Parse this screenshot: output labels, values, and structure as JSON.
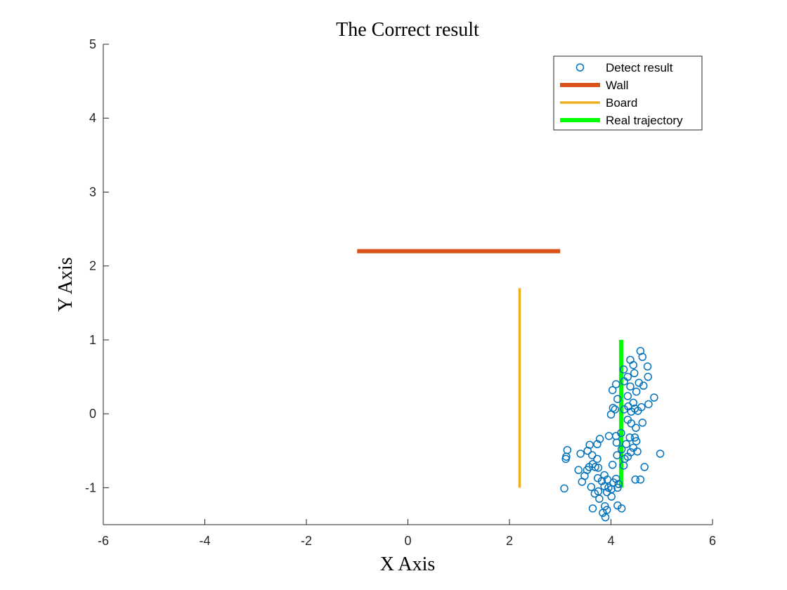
{
  "chart_data": {
    "type": "scatter",
    "title": "The Correct result",
    "xlabel": "X Axis",
    "ylabel": "Y Axis",
    "xlim": [
      -6,
      6
    ],
    "ylim": [
      -1.5,
      5
    ],
    "xticks": [
      "-6",
      "-4",
      "-2",
      "0",
      "2",
      "4",
      "6"
    ],
    "yticks": [
      "-1",
      "0",
      "1",
      "2",
      "3",
      "4",
      "5"
    ],
    "grid": false,
    "legend_position": "top-right",
    "series": [
      {
        "name": "Detect result",
        "kind": "scatter",
        "marker": "circle",
        "color": "#0072BD",
        "points": [
          [
            4.58,
            0.85
          ],
          [
            4.38,
            0.73
          ],
          [
            4.62,
            0.77
          ],
          [
            4.44,
            0.66
          ],
          [
            4.72,
            0.64
          ],
          [
            4.25,
            0.6
          ],
          [
            4.46,
            0.55
          ],
          [
            4.33,
            0.5
          ],
          [
            4.73,
            0.5
          ],
          [
            4.26,
            0.44
          ],
          [
            4.55,
            0.42
          ],
          [
            4.1,
            0.4
          ],
          [
            4.64,
            0.38
          ],
          [
            4.38,
            0.37
          ],
          [
            4.03,
            0.32
          ],
          [
            4.5,
            0.3
          ],
          [
            4.33,
            0.24
          ],
          [
            4.85,
            0.22
          ],
          [
            4.13,
            0.2
          ],
          [
            4.44,
            0.15
          ],
          [
            4.74,
            0.13
          ],
          [
            4.34,
            0.1
          ],
          [
            4.6,
            0.09
          ],
          [
            4.04,
            0.08
          ],
          [
            4.47,
            0.07
          ],
          [
            4.08,
            0.06
          ],
          [
            4.26,
            0.06
          ],
          [
            4.53,
            0.04
          ],
          [
            4.0,
            -0.01
          ],
          [
            4.4,
            0.03
          ],
          [
            4.33,
            -0.08
          ],
          [
            4.4,
            -0.13
          ],
          [
            4.62,
            -0.12
          ],
          [
            4.49,
            -0.19
          ],
          [
            4.2,
            -0.26
          ],
          [
            3.96,
            -0.3
          ],
          [
            4.1,
            -0.3
          ],
          [
            4.37,
            -0.32
          ],
          [
            4.47,
            -0.32
          ],
          [
            3.78,
            -0.34
          ],
          [
            4.5,
            -0.37
          ],
          [
            4.11,
            -0.39
          ],
          [
            4.3,
            -0.41
          ],
          [
            3.73,
            -0.41
          ],
          [
            3.58,
            -0.42
          ],
          [
            4.44,
            -0.46
          ],
          [
            4.21,
            -0.48
          ],
          [
            3.14,
            -0.49
          ],
          [
            3.54,
            -0.5
          ],
          [
            4.39,
            -0.52
          ],
          [
            4.52,
            -0.51
          ],
          [
            3.4,
            -0.54
          ],
          [
            4.97,
            -0.54
          ],
          [
            4.12,
            -0.56
          ],
          [
            3.63,
            -0.56
          ],
          [
            3.12,
            -0.58
          ],
          [
            4.33,
            -0.58
          ],
          [
            3.11,
            -0.61
          ],
          [
            3.73,
            -0.61
          ],
          [
            4.27,
            -0.61
          ],
          [
            3.64,
            -0.68
          ],
          [
            4.03,
            -0.69
          ],
          [
            4.25,
            -0.7
          ],
          [
            3.69,
            -0.72
          ],
          [
            3.57,
            -0.72
          ],
          [
            4.66,
            -0.72
          ],
          [
            3.75,
            -0.73
          ],
          [
            3.36,
            -0.76
          ],
          [
            3.53,
            -0.76
          ],
          [
            3.87,
            -0.83
          ],
          [
            3.48,
            -0.84
          ],
          [
            3.74,
            -0.87
          ],
          [
            4.58,
            -0.89
          ],
          [
            3.93,
            -0.89
          ],
          [
            4.1,
            -0.88
          ],
          [
            4.48,
            -0.89
          ],
          [
            3.82,
            -0.91
          ],
          [
            3.43,
            -0.92
          ],
          [
            4.05,
            -0.93
          ],
          [
            3.87,
            -0.98
          ],
          [
            4.15,
            -0.95
          ],
          [
            3.61,
            -0.99
          ],
          [
            3.95,
            -1.0
          ],
          [
            3.08,
            -1.01
          ],
          [
            4.13,
            -1.0
          ],
          [
            4.01,
            -1.02
          ],
          [
            3.75,
            -1.05
          ],
          [
            3.92,
            -1.06
          ],
          [
            3.68,
            -1.08
          ],
          [
            4.01,
            -1.12
          ],
          [
            3.77,
            -1.15
          ],
          [
            4.13,
            -1.24
          ],
          [
            3.88,
            -1.25
          ],
          [
            3.64,
            -1.28
          ],
          [
            4.21,
            -1.28
          ],
          [
            3.92,
            -1.3
          ],
          [
            3.84,
            -1.34
          ],
          [
            3.89,
            -1.4
          ]
        ]
      },
      {
        "name": "Wall",
        "kind": "line",
        "color": "#D95319",
        "x": [
          -1,
          3
        ],
        "y": [
          2.2,
          2.2
        ]
      },
      {
        "name": "Board",
        "kind": "line",
        "color": "#EDB120",
        "x": [
          2.2,
          2.2
        ],
        "y": [
          1.7,
          -1
        ]
      },
      {
        "name": "Real trajectory",
        "kind": "line",
        "color": "#00FF00",
        "x": [
          4.2,
          4.2
        ],
        "y": [
          1,
          -1
        ]
      }
    ]
  }
}
